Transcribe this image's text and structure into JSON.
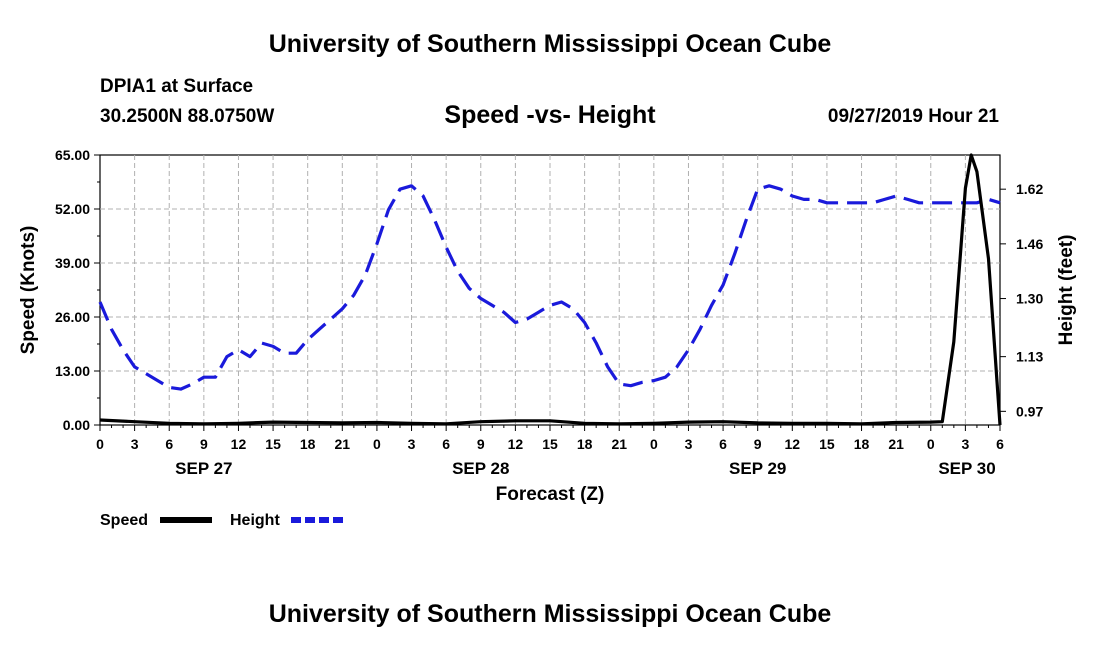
{
  "header": {
    "title": "University of Southern Mississippi Ocean Cube",
    "station": "DPIA1 at Surface",
    "coords": "30.2500N 88.0750W",
    "subtitle": "Speed -vs- Height",
    "datetime": "09/27/2019 Hour 21"
  },
  "footer": {
    "title": "University of Southern Mississippi Ocean Cube"
  },
  "chart_data": {
    "type": "line",
    "title": "Speed -vs- Height",
    "xlabel": "Forecast (Z)",
    "ylabel_left": "Speed (Knots)",
    "ylabel_right": "Height (feet)",
    "x_ticks": [
      "0",
      "3",
      "6",
      "9",
      "12",
      "15",
      "18",
      "21",
      "0",
      "3",
      "6",
      "9",
      "12",
      "15",
      "18",
      "21",
      "0",
      "3",
      "6",
      "9",
      "12",
      "15",
      "18",
      "21",
      "0",
      "3",
      "6"
    ],
    "x_date_labels": [
      {
        "hour": 9,
        "label": "SEP 27"
      },
      {
        "hour": 33,
        "label": "SEP 28"
      },
      {
        "hour": 57,
        "label": "SEP 29"
      },
      {
        "hour": 81,
        "label": "SEP 30"
      }
    ],
    "x_range_hours": [
      0,
      78
    ],
    "left_axis": {
      "ylim": [
        0,
        65
      ],
      "ticks": [
        "0.00",
        "13.00",
        "26.00",
        "39.00",
        "52.00",
        "65.00"
      ]
    },
    "right_axis": {
      "ylim": [
        0.93,
        1.72
      ],
      "ticks": [
        "0.97",
        "1.13",
        "1.30",
        "1.46",
        "1.62"
      ]
    },
    "grid": true,
    "legend_position": "bottom-left",
    "colors": {
      "speed": "#000000",
      "height": "#1a1adb",
      "grid": "#b0b0b0"
    },
    "series": [
      {
        "name": "Speed",
        "axis": "left",
        "x": [
          0,
          3,
          6,
          9,
          12,
          15,
          18,
          21,
          24,
          27,
          30,
          33,
          36,
          39,
          42,
          45,
          48,
          51,
          54,
          57,
          60,
          63,
          66,
          69,
          72,
          73,
          74,
          75,
          75.5,
          76,
          77,
          78
        ],
        "values": [
          1.2,
          0.8,
          0.4,
          0.3,
          0.4,
          0.7,
          0.6,
          0.5,
          0.6,
          0.4,
          0.3,
          0.8,
          1.0,
          1.0,
          0.4,
          0.3,
          0.4,
          0.7,
          0.8,
          0.5,
          0.4,
          0.4,
          0.3,
          0.6,
          0.7,
          0.8,
          20,
          57,
          65,
          61,
          40,
          0
        ]
      },
      {
        "name": "Height",
        "axis": "right",
        "x": [
          0,
          1,
          2,
          3,
          4,
          5,
          6,
          7,
          8,
          9,
          10,
          11,
          12,
          13,
          14,
          15,
          16,
          17,
          18,
          19,
          20,
          21,
          22,
          23,
          24,
          25,
          26,
          27,
          28,
          29,
          30,
          31,
          32,
          33,
          34,
          35,
          36,
          37,
          38,
          39,
          40,
          41,
          42,
          43,
          44,
          45,
          46,
          47,
          48,
          49,
          50,
          51,
          52,
          53,
          54,
          55,
          56,
          57,
          58,
          59,
          60,
          61,
          62,
          63,
          64,
          65,
          66,
          67,
          68,
          69,
          70,
          71,
          72,
          73,
          74,
          75,
          76,
          77,
          78
        ],
        "values": [
          1.29,
          1.21,
          1.15,
          1.1,
          1.08,
          1.06,
          1.04,
          1.035,
          1.05,
          1.07,
          1.07,
          1.13,
          1.15,
          1.13,
          1.17,
          1.16,
          1.14,
          1.14,
          1.18,
          1.21,
          1.24,
          1.27,
          1.31,
          1.37,
          1.46,
          1.56,
          1.62,
          1.63,
          1.6,
          1.53,
          1.45,
          1.38,
          1.33,
          1.3,
          1.28,
          1.26,
          1.23,
          1.24,
          1.26,
          1.28,
          1.29,
          1.27,
          1.23,
          1.17,
          1.1,
          1.05,
          1.045,
          1.055,
          1.06,
          1.07,
          1.1,
          1.15,
          1.21,
          1.28,
          1.34,
          1.43,
          1.53,
          1.62,
          1.63,
          1.62,
          1.6,
          1.59,
          1.59,
          1.58,
          1.58,
          1.58,
          1.58,
          1.58,
          1.59,
          1.6,
          1.59,
          1.58,
          1.58,
          1.58,
          1.58,
          1.58,
          1.58,
          1.59,
          1.58
        ]
      }
    ]
  }
}
